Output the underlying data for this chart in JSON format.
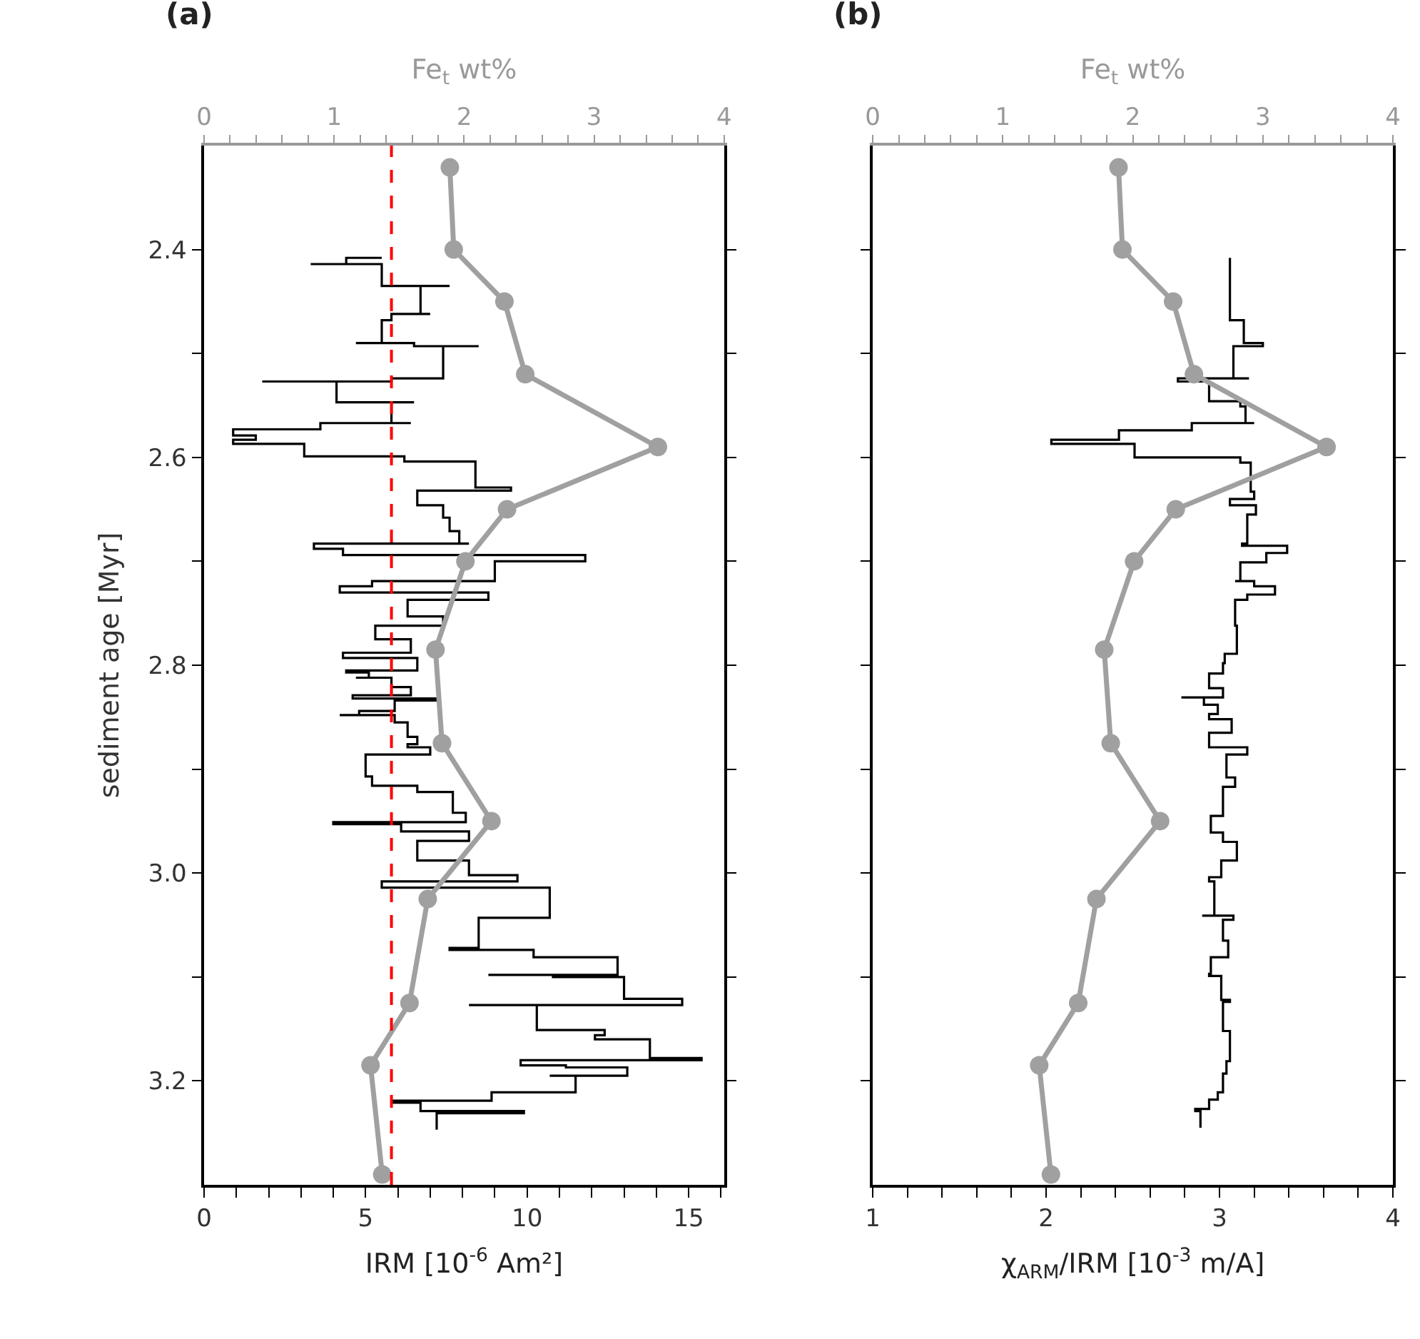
{
  "chart_data": [
    {
      "type": "step",
      "title": "(a)",
      "orientation": "horizontal",
      "xlabel": "IRM [10$^{-6}$ Am²]",
      "ylabel": "sediment age [Myr]",
      "x2label": "Fe$_{t}$ wt%",
      "xlim": [
        0,
        16.1
      ],
      "xticks": [
        0,
        {
          "value": 1,
          "label": null
        },
        {
          "value": 2,
          "label": null
        },
        {
          "value": 3,
          "label": null
        },
        {
          "value": 4,
          "label": null
        },
        5,
        {
          "value": 6,
          "label": null
        },
        {
          "value": 7,
          "label": null
        },
        {
          "value": 8,
          "label": null
        },
        {
          "value": 9,
          "label": null
        },
        10,
        {
          "value": 11,
          "label": null
        },
        {
          "value": 12,
          "label": null
        },
        {
          "value": 13,
          "label": null
        },
        {
          "value": 14,
          "label": null
        },
        15,
        {
          "value": 16,
          "label": null
        }
      ],
      "x2lim": [
        0,
        4
      ],
      "x2ticks": [
        0,
        {
          "value": 0.2,
          "label": null
        },
        {
          "value": 0.4,
          "label": null
        },
        {
          "value": 0.6,
          "label": null
        },
        {
          "value": 0.8,
          "label": null
        },
        1,
        {
          "value": 1.2,
          "label": null
        },
        {
          "value": 1.4,
          "label": null
        },
        {
          "value": 1.6,
          "label": null
        },
        {
          "value": 1.8,
          "label": null
        },
        2,
        {
          "value": 2.2,
          "label": null
        },
        {
          "value": 2.4,
          "label": null
        },
        {
          "value": 2.6,
          "label": null
        },
        {
          "value": 2.8,
          "label": null
        },
        3,
        {
          "value": 3.2,
          "label": null
        },
        {
          "value": 3.4,
          "label": null
        },
        {
          "value": 3.6,
          "label": null
        },
        {
          "value": 3.8,
          "label": null
        },
        4
      ],
      "ylim": [
        3.3,
        2.3
      ],
      "yticks": [
        2.4,
        {
          "value": 2.5,
          "label": null
        },
        2.6,
        {
          "value": 2.7,
          "label": null
        },
        2.8,
        {
          "value": 2.9,
          "label": null
        },
        {
          "value": 3.0,
          "label": "3.0"
        },
        {
          "value": 3.1,
          "label": null
        },
        3.2
      ],
      "ref_lines": [
        {
          "axis": "x",
          "value": 5.8,
          "color": "#ff0000",
          "line_style": "dashed"
        }
      ],
      "series": [
        {
          "color": "#000000",
          "x": [
            2.408,
            2.408,
            2.414,
            2.414,
            2.435,
            2.435,
            2.462,
            2.462,
            2.468,
            2.49,
            2.49,
            2.493,
            2.493,
            2.524,
            2.527,
            2.527,
            2.547,
            2.547,
            2.567,
            2.567,
            2.573,
            2.579,
            2.583,
            2.587,
            2.599,
            2.604,
            2.629,
            2.632,
            2.646,
            2.658,
            2.671,
            2.683,
            2.683,
            2.688,
            2.694,
            2.7,
            2.719,
            2.724,
            2.73,
            2.737,
            2.753,
            2.762,
            2.775,
            2.788,
            2.793,
            2.805,
            2.807,
            2.812,
            2.812,
            2.821,
            2.829,
            2.832,
            2.834,
            2.844,
            2.848,
            2.848,
            2.855,
            2.869,
            2.876,
            2.879,
            2.886,
            2.907,
            2.916,
            2.922,
            2.942,
            2.951,
            2.953,
            2.96,
            2.969,
            2.988,
            3.002,
            3.008,
            3.014,
            3.043,
            3.072,
            3.074,
            3.081,
            3.098,
            3.098,
            3.1,
            3.121,
            3.127,
            3.127,
            3.151,
            3.156,
            3.16,
            3.178,
            3.18,
            3.185,
            3.187,
            3.195,
            3.195,
            3.211,
            3.219,
            3.221,
            3.229,
            3.231,
            3.247
          ],
          "values": [
            5.5,
            4.4,
            3.3,
            5.5,
            7.6,
            6.7,
            7.0,
            5.8,
            5.5,
            4.7,
            6.5,
            8.5,
            7.4,
            5.8,
            1.8,
            4.1,
            6.5,
            5.8,
            6.4,
            3.6,
            0.9,
            1.6,
            0.9,
            3.1,
            6.2,
            8.4,
            9.5,
            6.6,
            7.4,
            7.6,
            7.9,
            8.2,
            3.4,
            4.3,
            11.8,
            9.0,
            5.2,
            4.2,
            8.8,
            6.3,
            7.4,
            5.3,
            6.4,
            4.3,
            6.6,
            4.4,
            5.1,
            4.7,
            5.8,
            6.4,
            4.6,
            7.2,
            5.9,
            4.8,
            4.2,
            5.9,
            6.3,
            6.6,
            6.3,
            7.0,
            5.0,
            5.2,
            6.6,
            7.7,
            8.1,
            4.0,
            6.1,
            8.2,
            6.6,
            8.2,
            9.7,
            5.5,
            10.7,
            8.5,
            7.6,
            10.2,
            12.8,
            8.8,
            10.8,
            13.0,
            14.8,
            8.2,
            10.3,
            12.4,
            12.1,
            13.8,
            15.4,
            9.8,
            11.2,
            13.1,
            10.7,
            11.5,
            8.9,
            5.8,
            6.7,
            9.9,
            7.2,
            7.2
          ]
        },
        {
          "type": "line",
          "axis": "x2",
          "marker": "circle",
          "color": "#a0a0a0",
          "x": [
            2.321,
            2.4,
            2.45,
            2.52,
            2.59,
            2.65,
            2.7,
            2.785,
            2.875,
            2.95,
            3.025,
            3.125,
            3.185,
            3.29
          ],
          "values": [
            1.89,
            1.92,
            2.31,
            2.47,
            3.49,
            2.33,
            2.01,
            1.78,
            1.83,
            2.21,
            1.72,
            1.58,
            1.28,
            1.37
          ]
        }
      ]
    },
    {
      "type": "step",
      "title": "(b)",
      "orientation": "horizontal",
      "xlabel": "χ$_{ARM}$/IRM [10$^{-3}$ m/A]",
      "x2label": "Fe$_{t}$ wt%",
      "tick_labels": "x",
      "xlim": [
        1,
        4
      ],
      "xticks": [
        1,
        {
          "value": 1.2,
          "label": null
        },
        {
          "value": 1.4,
          "label": null
        },
        {
          "value": 1.6,
          "label": null
        },
        {
          "value": 1.8,
          "label": null
        },
        2,
        {
          "value": 2.2,
          "label": null
        },
        {
          "value": 2.4,
          "label": null
        },
        {
          "value": 2.6,
          "label": null
        },
        {
          "value": 2.8,
          "label": null
        },
        3,
        {
          "value": 3.2,
          "label": null
        },
        {
          "value": 3.4,
          "label": null
        },
        {
          "value": 3.6,
          "label": null
        },
        {
          "value": 3.8,
          "label": null
        },
        4
      ],
      "x2lim": [
        0,
        4
      ],
      "x2ticks": [
        0,
        {
          "value": 0.2,
          "label": null
        },
        {
          "value": 0.4,
          "label": null
        },
        {
          "value": 0.6,
          "label": null
        },
        {
          "value": 0.8,
          "label": null
        },
        1,
        {
          "value": 1.2,
          "label": null
        },
        {
          "value": 1.4,
          "label": null
        },
        {
          "value": 1.6,
          "label": null
        },
        {
          "value": 1.8,
          "label": null
        },
        2,
        {
          "value": 2.2,
          "label": null
        },
        {
          "value": 2.4,
          "label": null
        },
        {
          "value": 2.6,
          "label": null
        },
        {
          "value": 2.8,
          "label": null
        },
        3,
        {
          "value": 3.2,
          "label": null
        },
        {
          "value": 3.4,
          "label": null
        },
        {
          "value": 3.6,
          "label": null
        },
        {
          "value": 3.8,
          "label": null
        },
        4
      ],
      "ylim": [
        3.3,
        2.3
      ],
      "yticks": [
        2.4,
        {
          "value": 2.5,
          "label": null
        },
        2.6,
        {
          "value": 2.7,
          "label": null
        },
        2.8,
        {
          "value": 2.9,
          "label": null
        },
        3.0,
        {
          "value": 3.1,
          "label": null
        },
        3.2
      ],
      "series": [
        {
          "color": "#000000",
          "x": [
            2.408,
            2.416,
            2.468,
            2.49,
            2.493,
            2.524,
            2.524,
            2.527,
            2.546,
            2.551,
            2.567,
            2.567,
            2.574,
            2.583,
            2.587,
            2.6,
            2.605,
            2.633,
            2.64,
            2.646,
            2.655,
            2.683,
            2.685,
            2.692,
            2.701,
            2.719,
            2.719,
            2.724,
            2.732,
            2.737,
            2.755,
            2.762,
            2.789,
            2.798,
            2.806,
            2.808,
            2.822,
            2.831,
            2.831,
            2.838,
            2.847,
            2.852,
            2.865,
            2.879,
            2.886,
            2.908,
            2.917,
            2.945,
            2.961,
            2.97,
            2.988,
            3.004,
            3.008,
            3.041,
            3.041,
            3.045,
            3.065,
            3.081,
            3.097,
            3.099,
            3.122,
            3.124,
            3.152,
            3.181,
            3.193,
            3.211,
            3.218,
            3.227,
            3.229,
            3.245
          ],
          "values": [
            3.06,
            3.06,
            3.14,
            3.25,
            3.08,
            3.17,
            2.76,
            2.94,
            3.12,
            3.15,
            3.2,
            2.84,
            2.42,
            2.03,
            2.51,
            3.12,
            3.18,
            3.2,
            3.06,
            3.21,
            3.16,
            3.13,
            3.39,
            3.27,
            3.12,
            3.09,
            3.2,
            3.32,
            3.16,
            3.09,
            3.09,
            3.1,
            3.03,
            3.02,
            3.02,
            2.94,
            3.02,
            2.78,
            2.91,
            2.99,
            2.94,
            3.07,
            2.94,
            3.16,
            3.04,
            3.09,
            3.02,
            2.95,
            3.02,
            3.1,
            3.01,
            2.94,
            2.97,
            2.9,
            3.08,
            3.02,
            3.05,
            2.95,
            2.94,
            3.01,
            3.06,
            3.02,
            3.06,
            3.04,
            3.02,
            2.99,
            2.94,
            2.86,
            2.89,
            2.89
          ]
        },
        {
          "type": "line",
          "axis": "x2",
          "marker": "circle",
          "color": "#a0a0a0",
          "x": [
            2.321,
            2.4,
            2.45,
            2.52,
            2.59,
            2.65,
            2.7,
            2.785,
            2.875,
            2.95,
            3.025,
            3.125,
            3.185,
            3.29
          ],
          "values": [
            1.89,
            1.92,
            2.31,
            2.47,
            3.49,
            2.33,
            2.01,
            1.78,
            1.83,
            2.21,
            1.72,
            1.58,
            1.28,
            1.37
          ]
        }
      ]
    }
  ]
}
